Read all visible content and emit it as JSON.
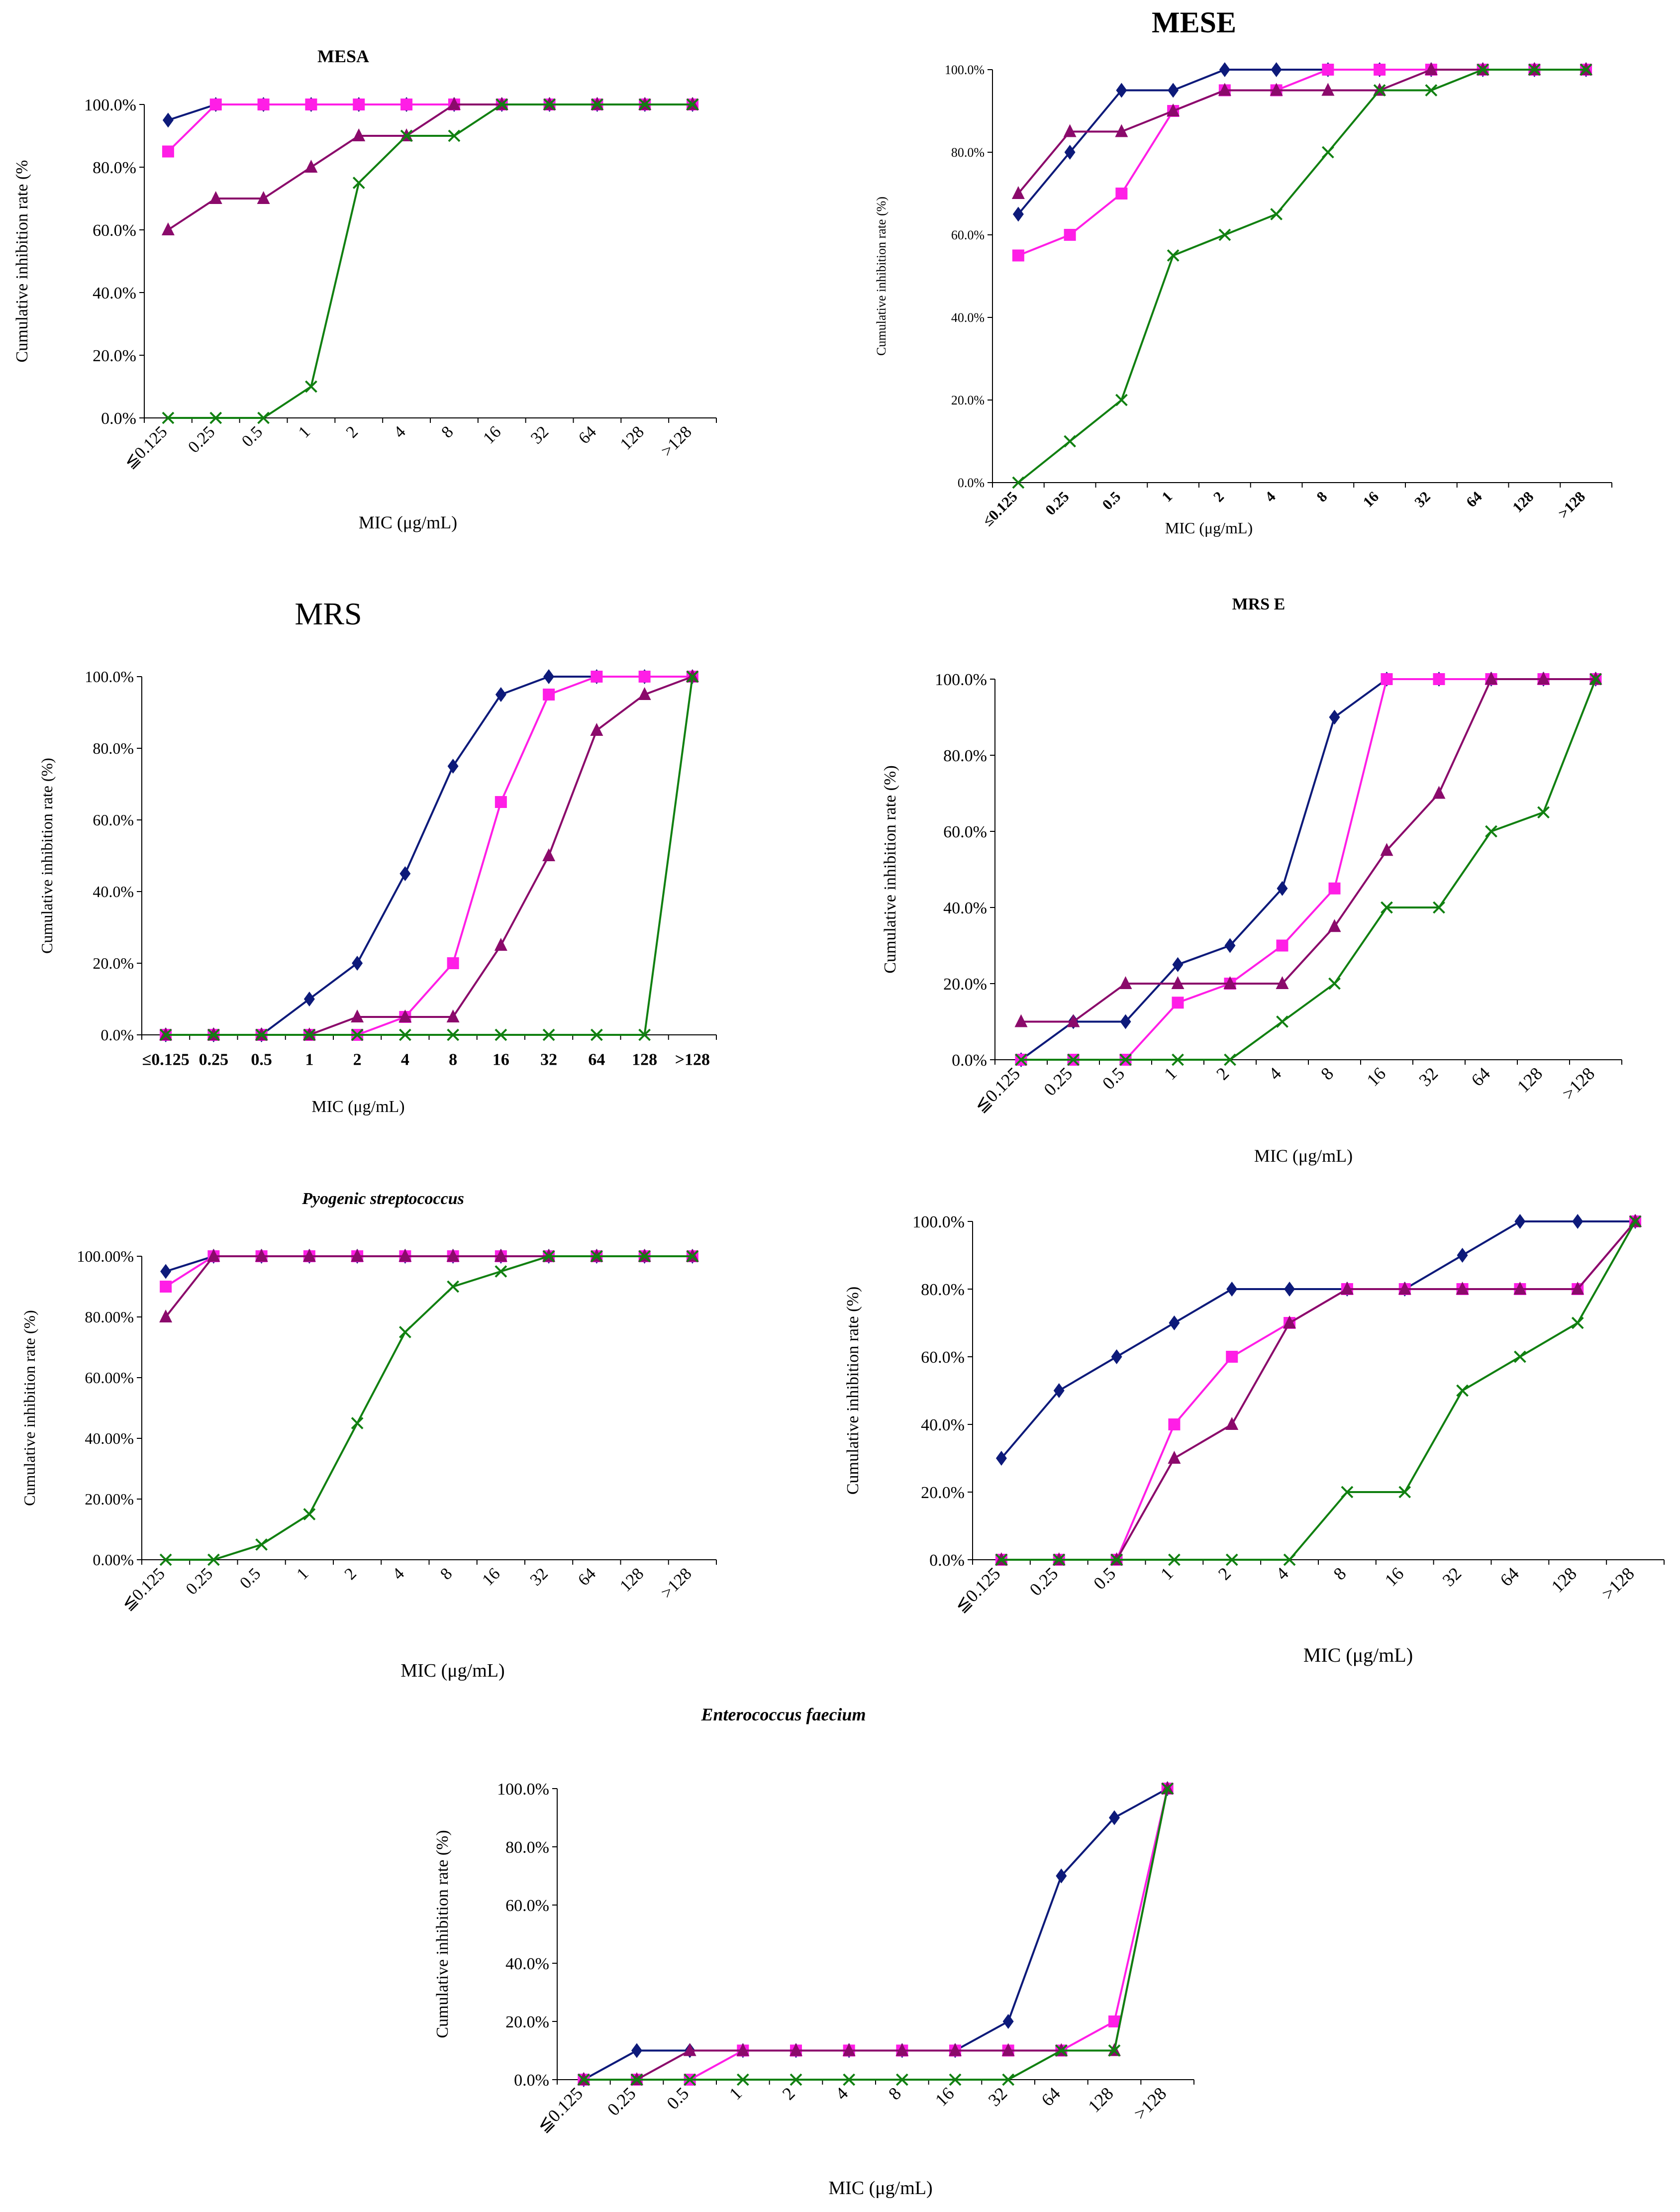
{
  "colors": {
    "series_1": "#0d1a7a",
    "series_2": "#ff1ee6",
    "series_3": "#8b0a6b",
    "series_4": "#118011",
    "axis": "#000000"
  },
  "markers": [
    "diamond",
    "square",
    "triangle",
    "x-mark"
  ],
  "x_ticks_default": [
    "≦0.125",
    "0.25",
    "0.5",
    "1",
    "2",
    "4",
    "8",
    "16",
    "32",
    "64",
    "128",
    ">128"
  ],
  "x_ticks_mese": [
    "≤0.125",
    "0.25",
    "0.5",
    "1",
    "2",
    "4",
    "8",
    "16",
    "32",
    "64",
    "128",
    ">128"
  ],
  "chart_data": [
    {
      "type": "line",
      "title": "MESA",
      "xlabel": "MIC (μg/mL)",
      "ylabel": "Cumulative inhibition rate (%",
      "categories": [
        "≦0.125",
        "0.25",
        "0.5",
        "1",
        "2",
        "4",
        "8",
        "16",
        "32",
        "64",
        "128",
        ">128"
      ],
      "y_ticks": [
        "0.0%",
        "20.0%",
        "40.0%",
        "60.0%",
        "80.0%",
        "100.0%"
      ],
      "ylim": [
        0,
        100
      ],
      "series": [
        {
          "values": [
            95,
            100,
            100,
            100,
            100,
            100,
            100,
            100,
            100,
            100,
            100,
            100
          ]
        },
        {
          "values": [
            85,
            100,
            100,
            100,
            100,
            100,
            100,
            100,
            100,
            100,
            100,
            100
          ]
        },
        {
          "values": [
            60,
            70,
            70,
            80,
            90,
            90,
            100,
            100,
            100,
            100,
            100,
            100
          ]
        },
        {
          "values": [
            0,
            0,
            0,
            10,
            75,
            90,
            90,
            100,
            100,
            100,
            100,
            100
          ]
        }
      ]
    },
    {
      "type": "line",
      "title": "MESE",
      "xlabel": "MIC (μg/mL)",
      "ylabel": "Cumulative inhibition rate (%)",
      "categories": [
        "≤0.125",
        "0.25",
        "0.5",
        "1",
        "2",
        "4",
        "8",
        "16",
        "32",
        "64",
        "128",
        ">128"
      ],
      "y_ticks": [
        "0.0%",
        "20.0%",
        "40.0%",
        "60.0%",
        "80.0%",
        "100.0%"
      ],
      "ylim": [
        0,
        100
      ],
      "series": [
        {
          "values": [
            65,
            80,
            95,
            95,
            100,
            100,
            100,
            100,
            100,
            100,
            100,
            100
          ]
        },
        {
          "values": [
            55,
            60,
            70,
            90,
            95,
            95,
            100,
            100,
            100,
            100,
            100,
            100
          ]
        },
        {
          "values": [
            70,
            85,
            85,
            90,
            95,
            95,
            95,
            95,
            100,
            100,
            100,
            100
          ]
        },
        {
          "values": [
            0,
            10,
            20,
            55,
            60,
            65,
            80,
            95,
            95,
            100,
            100,
            100
          ]
        }
      ]
    },
    {
      "type": "line",
      "title": "MRS",
      "xlabel": "MIC (μg/mL)",
      "ylabel": "Cumulative inhibition rate (%)",
      "categories": [
        "≤0.125",
        "0.25",
        "0.5",
        "1",
        "2",
        "4",
        "8",
        "16",
        "32",
        "64",
        "128",
        ">128"
      ],
      "y_ticks": [
        "0.0%",
        "20.0%",
        "40.0%",
        "60.0%",
        "80.0%",
        "100.0%"
      ],
      "ylim": [
        0,
        100
      ],
      "series": [
        {
          "values": [
            0,
            0,
            0,
            10,
            20,
            45,
            75,
            95,
            100,
            100,
            100,
            100
          ]
        },
        {
          "values": [
            0,
            0,
            0,
            0,
            0,
            5,
            20,
            65,
            95,
            100,
            100,
            100
          ]
        },
        {
          "values": [
            0,
            0,
            0,
            0,
            5,
            5,
            5,
            25,
            50,
            85,
            95,
            100
          ]
        },
        {
          "values": [
            0,
            0,
            0,
            0,
            0,
            0,
            0,
            0,
            0,
            0,
            0,
            100
          ]
        }
      ]
    },
    {
      "type": "line",
      "title": "MRS E",
      "xlabel": "MIC (μg/mL)",
      "ylabel": "Cumulative inhibition rate (%)",
      "categories": [
        "≦0.125",
        "0.25",
        "0.5",
        "1",
        "2",
        "4",
        "8",
        "16",
        "32",
        "64",
        "128",
        ">128"
      ],
      "y_ticks": [
        "0.0%",
        "20.0%",
        "40.0%",
        "60.0%",
        "80.0%",
        "100.0%"
      ],
      "ylim": [
        0,
        100
      ],
      "series": [
        {
          "values": [
            0,
            10,
            10,
            25,
            30,
            45,
            90,
            100,
            100,
            100,
            100,
            100
          ]
        },
        {
          "values": [
            0,
            0,
            0,
            15,
            20,
            30,
            45,
            100,
            100,
            100,
            100,
            100
          ]
        },
        {
          "values": [
            10,
            10,
            20,
            20,
            20,
            20,
            35,
            55,
            70,
            100,
            100,
            100
          ]
        },
        {
          "values": [
            0,
            0,
            0,
            0,
            0,
            10,
            20,
            40,
            40,
            60,
            65,
            100
          ]
        }
      ]
    },
    {
      "type": "line",
      "title": "Pyogenic streptococcus",
      "xlabel": "MIC (μg/mL)",
      "ylabel": "Cumulative inhibition rate (%)",
      "categories": [
        "≦0.125",
        "0.25",
        "0.5",
        "1",
        "2",
        "4",
        "8",
        "16",
        "32",
        "64",
        "128",
        ">128"
      ],
      "y_ticks": [
        "0.00%",
        "20.00%",
        "40.00%",
        "60.00%",
        "80.00%",
        "100.00%"
      ],
      "ylim": [
        0,
        100
      ],
      "series": [
        {
          "values": [
            95,
            100,
            100,
            100,
            100,
            100,
            100,
            100,
            100,
            100,
            100,
            100
          ]
        },
        {
          "values": [
            90,
            100,
            100,
            100,
            100,
            100,
            100,
            100,
            100,
            100,
            100,
            100
          ]
        },
        {
          "values": [
            80,
            100,
            100,
            100,
            100,
            100,
            100,
            100,
            100,
            100,
            100,
            100
          ]
        },
        {
          "values": [
            0,
            0,
            5,
            15,
            45,
            75,
            90,
            95,
            100,
            100,
            100,
            100
          ]
        }
      ]
    },
    {
      "type": "line",
      "title": "",
      "xlabel": "MIC (μg/mL)",
      "ylabel": "Cumulative inhibition rate (%)",
      "categories": [
        "≦0.125",
        "0.25",
        "0.5",
        "1",
        "2",
        "4",
        "8",
        "16",
        "32",
        "64",
        "128",
        ">128"
      ],
      "y_ticks": [
        "0.0%",
        "20.0%",
        "40.0%",
        "60.0%",
        "80.0%",
        "100.0%"
      ],
      "ylim": [
        0,
        100
      ],
      "series": [
        {
          "values": [
            30,
            50,
            60,
            70,
            80,
            80,
            80,
            80,
            90,
            100,
            100,
            100
          ]
        },
        {
          "values": [
            0,
            0,
            0,
            40,
            60,
            70,
            80,
            80,
            80,
            80,
            80,
            100
          ]
        },
        {
          "values": [
            0,
            0,
            0,
            30,
            40,
            70,
            80,
            80,
            80,
            80,
            80,
            100
          ]
        },
        {
          "values": [
            0,
            0,
            0,
            0,
            0,
            0,
            20,
            20,
            50,
            60,
            70,
            100
          ]
        }
      ]
    },
    {
      "type": "line",
      "title": "Enterococcus faecium",
      "xlabel": "MIC (μg/mL)",
      "ylabel": "Cumulative inhibition rate (%)",
      "categories": [
        "≦0.125",
        "0.25",
        "0.5",
        "1",
        "2",
        "4",
        "8",
        "16",
        "32",
        "64",
        "128",
        ">128"
      ],
      "y_ticks": [
        "0.0%",
        "20.0%",
        "40.0%",
        "60.0%",
        "80.0%",
        "100.0%"
      ],
      "ylim": [
        0,
        100
      ],
      "series": [
        {
          "values": [
            0,
            10,
            10,
            10,
            10,
            10,
            10,
            10,
            20,
            70,
            90,
            100
          ]
        },
        {
          "values": [
            0,
            0,
            0,
            10,
            10,
            10,
            10,
            10,
            10,
            10,
            20,
            100
          ]
        },
        {
          "values": [
            0,
            0,
            10,
            10,
            10,
            10,
            10,
            10,
            10,
            10,
            10,
            100
          ]
        },
        {
          "values": [
            0,
            0,
            0,
            0,
            0,
            0,
            0,
            0,
            0,
            10,
            10,
            100
          ]
        }
      ]
    }
  ]
}
